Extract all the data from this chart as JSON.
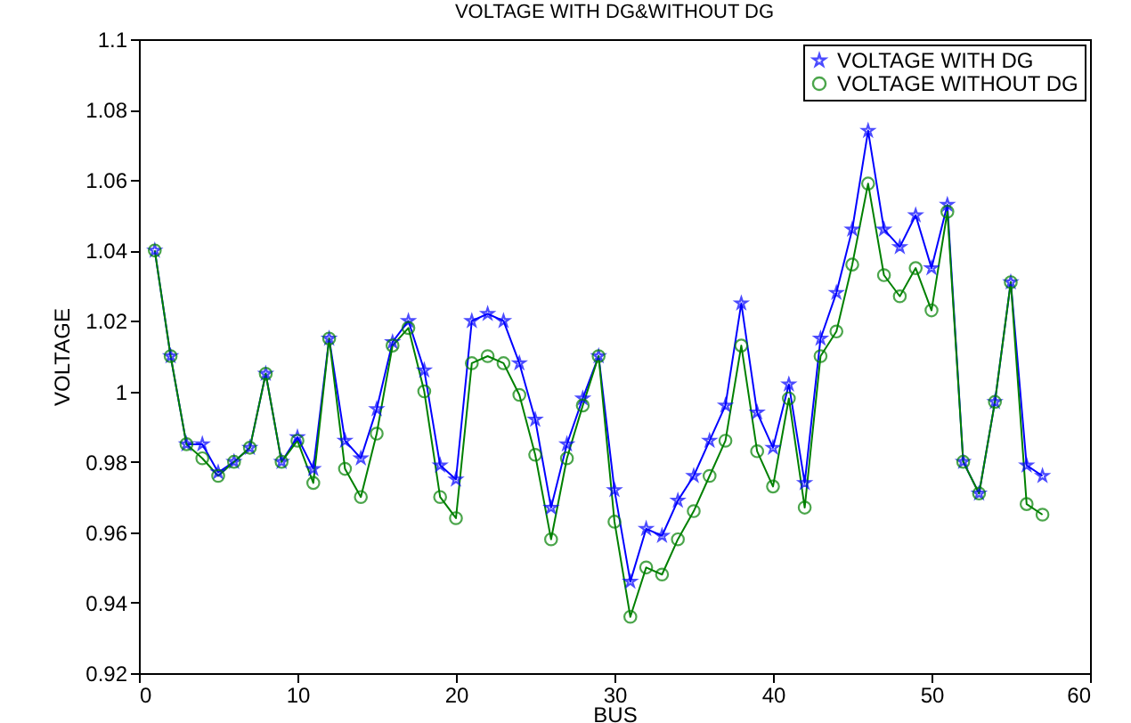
{
  "chart_data": {
    "type": "line",
    "title": "VOLTAGE WITH DG&WITHOUT DG",
    "xlabel": "BUS",
    "ylabel": "VOLTAGE",
    "x": [
      1,
      2,
      3,
      4,
      5,
      6,
      7,
      8,
      9,
      10,
      11,
      12,
      13,
      14,
      15,
      16,
      17,
      18,
      19,
      20,
      21,
      22,
      23,
      24,
      25,
      26,
      27,
      28,
      29,
      30,
      31,
      32,
      33,
      34,
      35,
      36,
      37,
      38,
      39,
      40,
      41,
      42,
      43,
      44,
      45,
      46,
      47,
      48,
      49,
      50,
      51,
      52,
      53,
      54,
      55,
      56,
      57
    ],
    "series": [
      {
        "name": "VOLTAGE WITH DG",
        "color": "#0000ff",
        "marker": "star",
        "values": [
          1.04,
          1.01,
          0.985,
          0.985,
          0.977,
          0.98,
          0.984,
          1.005,
          0.98,
          0.987,
          0.978,
          1.015,
          0.986,
          0.981,
          0.995,
          1.014,
          1.02,
          1.006,
          0.979,
          0.975,
          1.02,
          1.022,
          1.02,
          1.008,
          0.992,
          0.967,
          0.985,
          0.998,
          1.01,
          0.972,
          0.946,
          0.961,
          0.959,
          0.969,
          0.976,
          0.986,
          0.996,
          1.025,
          0.994,
          0.984,
          1.002,
          0.974,
          1.015,
          1.028,
          1.046,
          1.074,
          1.046,
          1.041,
          1.05,
          1.035,
          1.053,
          0.98,
          0.971,
          0.997,
          1.031,
          0.979,
          0.976
        ]
      },
      {
        "name": "VOLTAGE WITHOUT DG",
        "color": "#008000",
        "marker": "circle",
        "values": [
          1.04,
          1.01,
          0.985,
          0.981,
          0.976,
          0.98,
          0.984,
          1.005,
          0.98,
          0.986,
          0.974,
          1.015,
          0.978,
          0.97,
          0.988,
          1.013,
          1.018,
          1.0,
          0.97,
          0.964,
          1.008,
          1.01,
          1.008,
          0.999,
          0.982,
          0.958,
          0.981,
          0.996,
          1.01,
          0.963,
          0.936,
          0.95,
          0.948,
          0.958,
          0.966,
          0.976,
          0.986,
          1.013,
          0.983,
          0.973,
          0.998,
          0.967,
          1.01,
          1.017,
          1.036,
          1.059,
          1.033,
          1.027,
          1.035,
          1.023,
          1.051,
          0.98,
          0.971,
          0.997,
          1.031,
          0.968,
          0.965
        ]
      }
    ],
    "xlim": [
      0,
      60
    ],
    "xticks": [
      0,
      10,
      20,
      30,
      40,
      50,
      60
    ],
    "ylim": [
      0.92,
      1.1
    ],
    "yticks": [
      0.92,
      0.94,
      0.96,
      0.98,
      1,
      1.02,
      1.04,
      1.06,
      1.08,
      1.1
    ],
    "legend": "top right",
    "grid": false,
    "line_style": "solid"
  }
}
